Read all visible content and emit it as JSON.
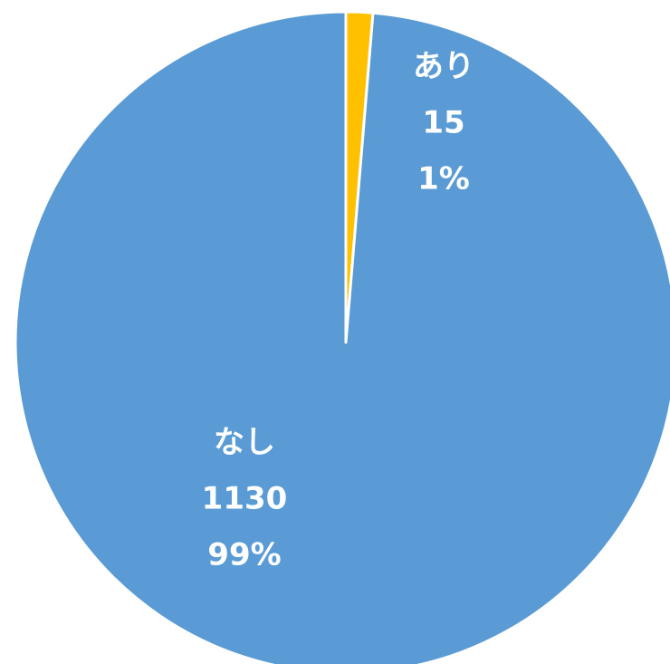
{
  "chart_data": {
    "type": "pie",
    "categories": [
      "あり",
      "なし"
    ],
    "values": [
      15,
      1130
    ],
    "percent_labels": [
      "1%",
      "99%"
    ],
    "colors": [
      "#ffc000",
      "#5b9bd5"
    ]
  }
}
